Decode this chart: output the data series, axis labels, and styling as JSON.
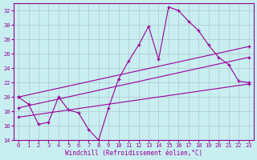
{
  "xlabel": "Windchill (Refroidissement éolien,°C)",
  "xlim": [
    -0.5,
    23.5
  ],
  "ylim": [
    14,
    33
  ],
  "yticks": [
    14,
    16,
    18,
    20,
    22,
    24,
    26,
    28,
    30,
    32
  ],
  "xticks": [
    0,
    1,
    2,
    3,
    4,
    5,
    6,
    7,
    8,
    9,
    10,
    11,
    12,
    13,
    14,
    15,
    16,
    17,
    18,
    19,
    20,
    21,
    22,
    23
  ],
  "bg_color": "#c8eef0",
  "line_color": "#990099",
  "grid_color": "#b0c8d0",
  "lines": [
    {
      "x": [
        0,
        1,
        2,
        3,
        4,
        5,
        6,
        7,
        8,
        9,
        10,
        11,
        12,
        13,
        14,
        15,
        16,
        17,
        18,
        19,
        20,
        21,
        22,
        23
      ],
      "y": [
        20.0,
        19.0,
        16.2,
        16.5,
        20.0,
        18.2,
        17.8,
        15.5,
        14.0,
        18.5,
        22.5,
        25.0,
        27.2,
        29.8,
        25.2,
        32.5,
        32.0,
        30.5,
        29.2,
        27.2,
        25.5,
        24.5,
        22.2,
        22.0
      ]
    },
    {
      "x": [
        0,
        23
      ],
      "y": [
        20.0,
        27.0
      ]
    },
    {
      "x": [
        0,
        23
      ],
      "y": [
        18.5,
        25.5
      ]
    },
    {
      "x": [
        0,
        23
      ],
      "y": [
        17.2,
        21.8
      ]
    }
  ]
}
